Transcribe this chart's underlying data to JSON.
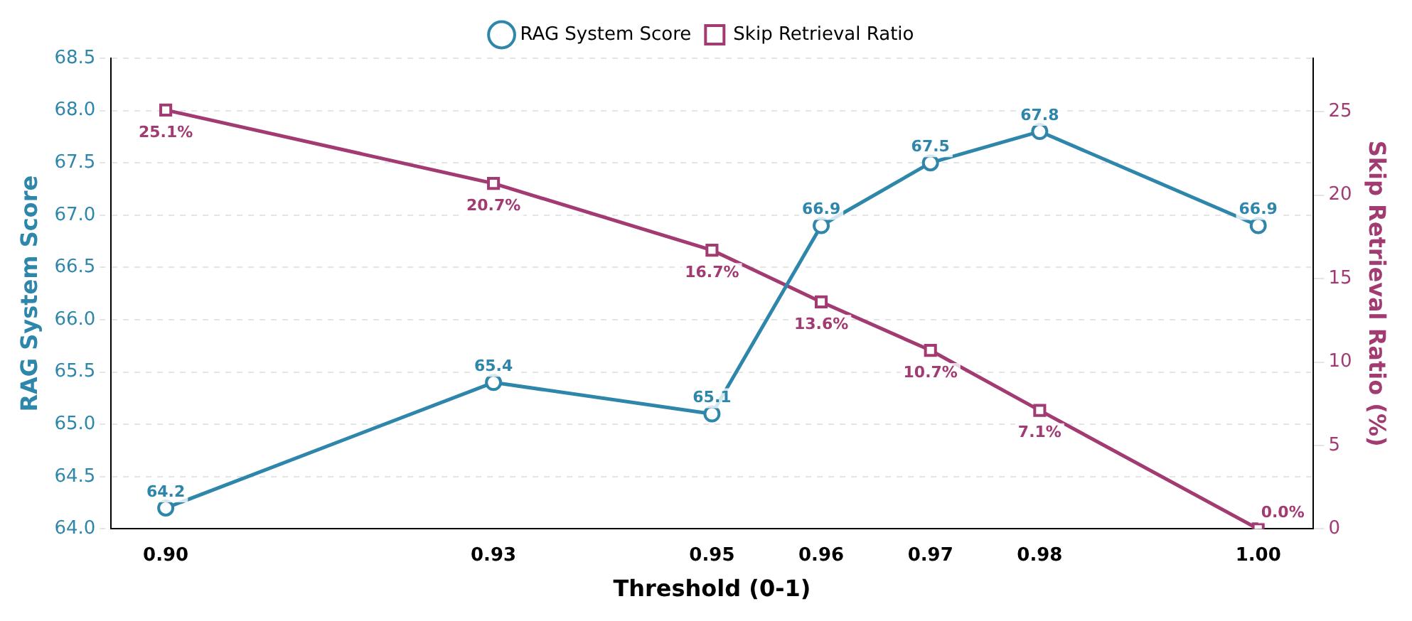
{
  "chart_data": {
    "type": "line",
    "xlabel": "Threshold (0-1)",
    "ylabel": "RAG System Score",
    "y2label": "Skip Retrieval Ratio (%)",
    "x": [
      0.9,
      0.93,
      0.95,
      0.96,
      0.97,
      0.98,
      1.0
    ],
    "series": [
      {
        "name": "RAG System Score",
        "color": "#2e86ab",
        "marker": "circle",
        "values": [
          64.2,
          65.4,
          65.1,
          66.9,
          67.5,
          67.8,
          66.9
        ],
        "value_labels": [
          "64.2",
          "65.4",
          "65.1",
          "66.9",
          "67.5",
          "67.8",
          "66.9"
        ]
      },
      {
        "name": "Skip Retrieval Ratio",
        "color": "#a23b72",
        "marker": "square",
        "axis": "y2",
        "values": [
          25.1,
          20.7,
          16.7,
          13.6,
          10.7,
          7.1,
          0.0
        ],
        "value_labels": [
          "25.1%",
          "20.7%",
          "16.7%",
          "13.6%",
          "10.7%",
          "7.1%",
          "0.0%"
        ]
      }
    ],
    "xlim": [
      0.895,
      1.005
    ],
    "xticks": [
      {
        "value": 0.9,
        "label": "0.90"
      },
      {
        "value": 0.93,
        "label": "0.93"
      },
      {
        "value": 0.95,
        "label": "0.95"
      },
      {
        "value": 0.96,
        "label": "0.96"
      },
      {
        "value": 0.97,
        "label": "0.97"
      },
      {
        "value": 0.98,
        "label": "0.98"
      },
      {
        "value": 1.0,
        "label": "1.00"
      }
    ],
    "ylim": [
      64.0,
      68.5
    ],
    "yticks": [
      {
        "value": 64,
        "label": "64.0"
      },
      {
        "value": 64.5,
        "label": "64.5"
      },
      {
        "value": 65,
        "label": "65.0"
      },
      {
        "value": 65.5,
        "label": "65.5"
      },
      {
        "value": 66,
        "label": "66.0"
      },
      {
        "value": 66.5,
        "label": "66.5"
      },
      {
        "value": 67,
        "label": "67.0"
      },
      {
        "value": 67.5,
        "label": "67.5"
      },
      {
        "value": 68,
        "label": "68.0"
      },
      {
        "value": 68.5,
        "label": "68.5"
      }
    ],
    "y2lim": [
      0,
      28.2
    ],
    "y2ticks": [
      0,
      5,
      10,
      15,
      20,
      25
    ],
    "grid": "y",
    "legend": "top",
    "line_style": "solid"
  }
}
